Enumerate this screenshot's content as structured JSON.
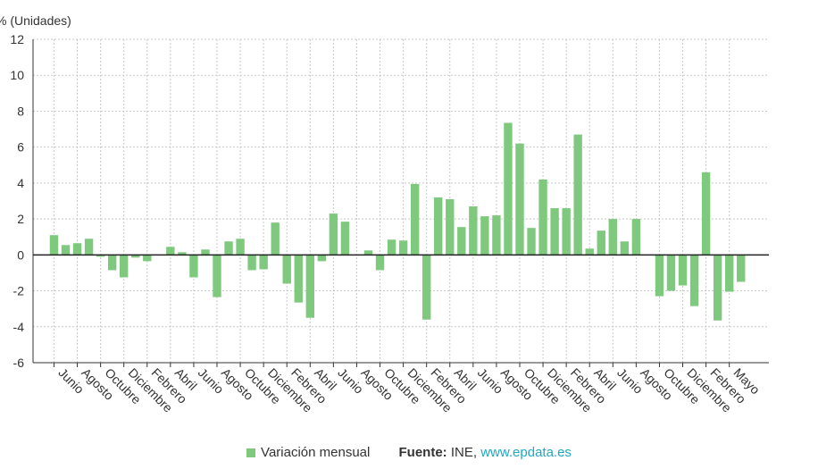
{
  "chart_data": {
    "type": "bar",
    "ylabel": "% (Unidades)",
    "ylim": [
      -6,
      12
    ],
    "yticks": [
      -6,
      -4,
      -2,
      0,
      2,
      4,
      6,
      8,
      10,
      12
    ],
    "grid": true,
    "bar_color": "#7fc97f",
    "x_tick_labels": [
      "Junio",
      "Agosto",
      "Octubre",
      "Diciembre",
      "Febrero",
      "Abril",
      "Junio",
      "Agosto",
      "Octubre",
      "Diciembre",
      "Febrero",
      "Abril",
      "Junio",
      "Agosto",
      "Octubre",
      "Diciembre",
      "Febrero",
      "Abril",
      "Junio",
      "Agosto",
      "Octubre",
      "Diciembre",
      "Febrero",
      "Abril",
      "Junio",
      "Agosto",
      "Octubre",
      "Diciembre",
      "Febrero",
      "Mayo"
    ],
    "series": [
      {
        "name": "Variación mensual",
        "values": [
          1.1,
          0.55,
          0.65,
          0.9,
          -0.1,
          -0.85,
          -1.25,
          -0.15,
          -0.35,
          0.0,
          0.45,
          0.15,
          -1.25,
          0.3,
          -2.35,
          0.75,
          0.9,
          -0.85,
          -0.8,
          1.8,
          -1.6,
          -2.65,
          -3.5,
          -0.35,
          2.3,
          1.85,
          0.0,
          0.25,
          -0.85,
          0.85,
          0.8,
          3.95,
          -3.6,
          3.2,
          3.1,
          1.55,
          2.7,
          2.15,
          2.2,
          7.35,
          6.2,
          1.5,
          4.2,
          2.6,
          2.6,
          6.7,
          0.35,
          1.35,
          2.0,
          0.75,
          2.0,
          0.0,
          -2.3,
          -2.0,
          -1.7,
          -2.85,
          4.6,
          -3.65,
          -2.05,
          -1.5
        ]
      }
    ]
  },
  "legend": {
    "series_label": "Variación mensual",
    "source_key": "Fuente:",
    "source_text": " INE, ",
    "source_link": "www.epdata.es"
  }
}
